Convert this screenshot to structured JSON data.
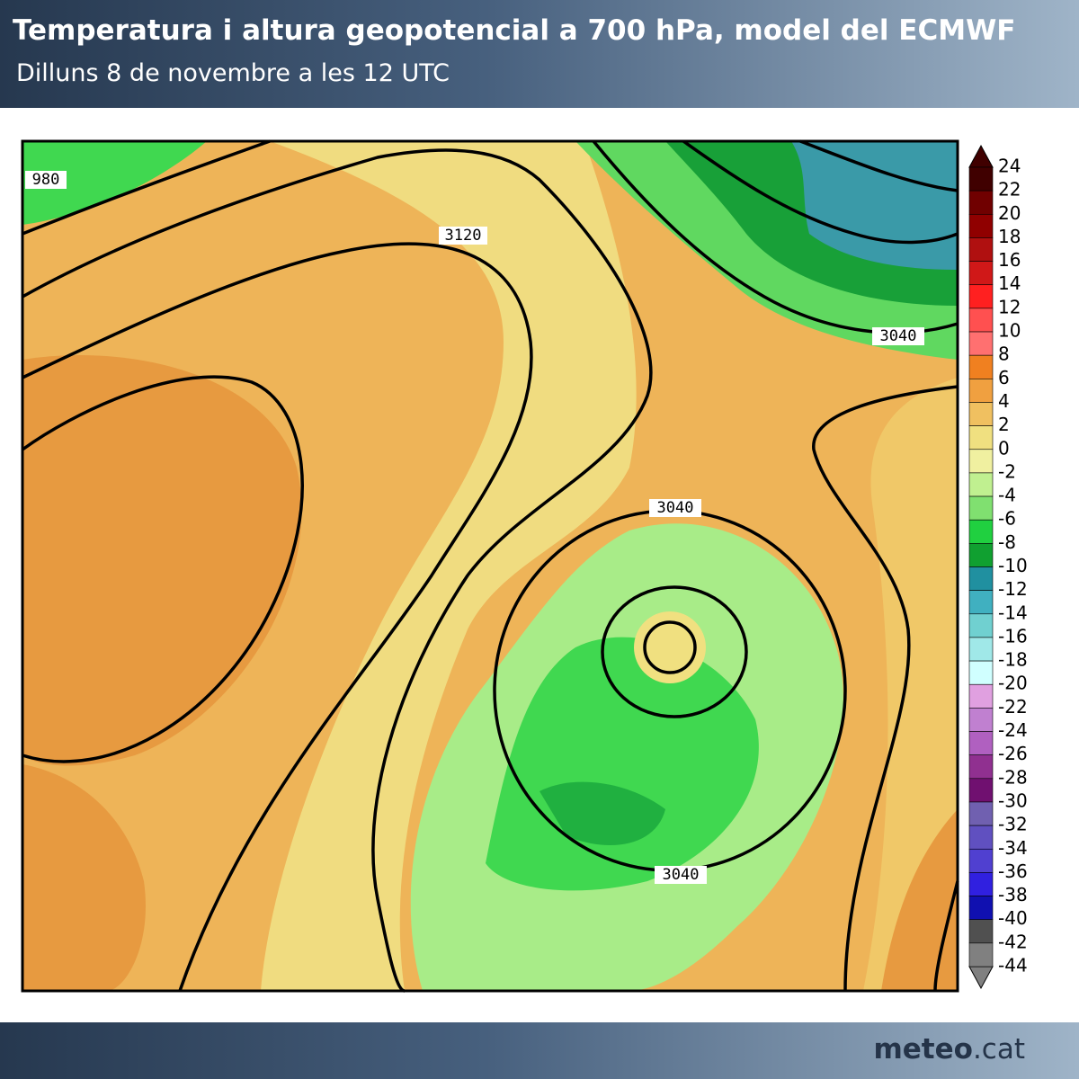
{
  "header": {
    "title": "Temperatura i altura geopotencial a 700 hPa, model del ECMWF",
    "subtitle": "Dilluns 8 de novembre a les 12 UTC"
  },
  "map": {
    "contour_labels": [
      "980",
      "3120",
      "3040",
      "3040",
      "3040"
    ]
  },
  "colorbar": {
    "ticks": [
      24,
      22,
      20,
      18,
      16,
      14,
      12,
      10,
      8,
      6,
      4,
      2,
      0,
      -2,
      -4,
      -6,
      -8,
      -10,
      -12,
      -14,
      -16,
      -18,
      -20,
      -22,
      -24,
      -26,
      -28,
      -30,
      -32,
      -34,
      -36,
      -38,
      -40,
      -42,
      -44
    ],
    "colors": [
      "#400000",
      "#700000",
      "#900000",
      "#b01010",
      "#d01818",
      "#ff2020",
      "#ff5050",
      "#ff7070",
      "#f08020",
      "#f0a040",
      "#f0c060",
      "#f0e080",
      "#f0f0a0",
      "#c0f090",
      "#80e070",
      "#20d040",
      "#10a030",
      "#2090a0",
      "#40b0c0",
      "#70d0d0",
      "#a0e8e8",
      "#d0ffff",
      "#e0a0e0",
      "#c080d0",
      "#b060c0",
      "#903090",
      "#701070",
      "#7060b0",
      "#6050c0",
      "#5040d0",
      "#3020e0",
      "#1010b0",
      "#505050",
      "#808080"
    ]
  },
  "footer": {
    "brand": "meteo",
    "domain": ".cat"
  }
}
